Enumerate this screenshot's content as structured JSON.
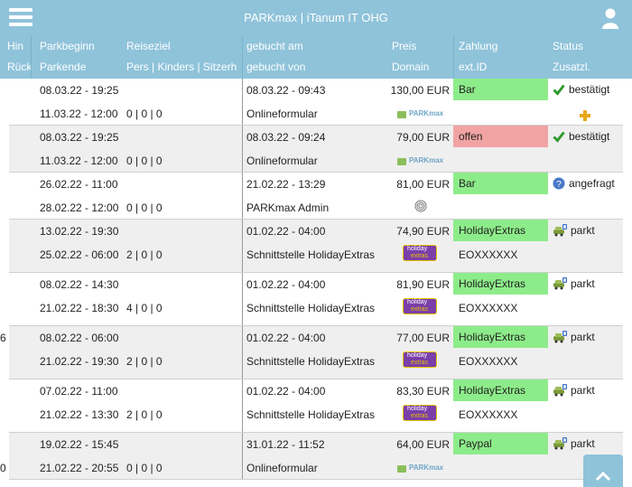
{
  "app": {
    "title": "PARKmax | iTanum IT OHG"
  },
  "header": {
    "hin": "Hin",
    "rueck": "Rück",
    "parkbeginn": "Parkbeginn",
    "parkende": "Parkende",
    "reiseziel": "Reiseziel",
    "pers": "Pers | Kinders | Sitzerh",
    "gebucht_am": "gebucht am",
    "gebucht_von": "gebucht von",
    "preis": "Preis",
    "domain": "Domain",
    "zahlung": "Zahlung",
    "ext_id": "ext.ID",
    "status": "Status",
    "zusatzl": "Zusatzl."
  },
  "rows": [
    {
      "left_top": "",
      "left_bottom": "",
      "beginn": "08.03.22 - 19:25",
      "ende": "11.03.22 - 12:00",
      "pers": "0 | 0 | 0",
      "gebucht_am": "08.03.22 - 09:43",
      "gebucht_von": "Onlineformular",
      "preis": "130,00 EUR",
      "domain_logo": "parkmax",
      "zahlung": "Bar",
      "zahlung_color": "green",
      "ext_id": "",
      "status": "bestätigt",
      "status_icon": "check-icon",
      "extra_icon": "plus-icon"
    },
    {
      "left_top": "",
      "left_bottom": "",
      "beginn": "08.03.22 - 19:25",
      "ende": "11.03.22 - 12:00",
      "pers": "0 | 0 | 0",
      "gebucht_am": "08.03.22 - 09:24",
      "gebucht_von": "Onlineformular",
      "preis": "79,00 EUR",
      "domain_logo": "parkmax",
      "zahlung": "offen",
      "zahlung_color": "red",
      "ext_id": "",
      "status": "bestätigt",
      "status_icon": "check-icon",
      "extra_icon": ""
    },
    {
      "left_top": "",
      "left_bottom": "",
      "beginn": "26.02.22 - 11:00",
      "ende": "28.02.22 - 12:00",
      "pers": "0 | 0 | 0",
      "gebucht_am": "21.02.22 - 13:29",
      "gebucht_von": "PARKmax Admin",
      "preis": "81,00 EUR",
      "domain_logo": "fingerprint",
      "zahlung": "Bar",
      "zahlung_color": "green",
      "ext_id": "",
      "status": "angefragt",
      "status_icon": "question-icon",
      "extra_icon": ""
    },
    {
      "left_top": "",
      "left_bottom": "",
      "beginn": "13.02.22 - 19:30",
      "ende": "25.02.22 - 06:00",
      "pers": "2 | 0 | 0",
      "gebucht_am": "01.02.22 - 04:00",
      "gebucht_von": "Schnittstelle HolidayExtras",
      "preis": "74,90 EUR",
      "domain_logo": "holiday",
      "zahlung": "HolidayExtras",
      "zahlung_color": "green",
      "ext_id": "EOXXXXXX",
      "status": "parkt",
      "status_icon": "car-icon",
      "extra_icon": ""
    },
    {
      "left_top": "",
      "left_bottom": "",
      "beginn": "08.02.22 - 14:30",
      "ende": "21.02.22 - 18:30",
      "pers": "4 | 0 | 0",
      "gebucht_am": "01.02.22 - 04:00",
      "gebucht_von": "Schnittstelle HolidayExtras",
      "preis": "81,90 EUR",
      "domain_logo": "holiday",
      "zahlung": "HolidayExtras",
      "zahlung_color": "green",
      "ext_id": "EOXXXXXX",
      "status": "parkt",
      "status_icon": "car-icon",
      "extra_icon": ""
    },
    {
      "left_top": "6",
      "left_bottom": "",
      "beginn": "08.02.22 - 06:00",
      "ende": "21.02.22 - 19:30",
      "pers": "2 | 0 | 0",
      "gebucht_am": "01.02.22 - 04:00",
      "gebucht_von": "Schnittstelle HolidayExtras",
      "preis": "77,00 EUR",
      "domain_logo": "holiday",
      "zahlung": "HolidayExtras",
      "zahlung_color": "green",
      "ext_id": "EOXXXXXX",
      "status": "parkt",
      "status_icon": "car-icon",
      "extra_icon": ""
    },
    {
      "left_top": "",
      "left_bottom": "",
      "beginn": "07.02.22 - 11:00",
      "ende": "21.02.22 - 13:30",
      "pers": "2 | 0 | 0",
      "gebucht_am": "01.02.22 - 04:00",
      "gebucht_von": "Schnittstelle HolidayExtras",
      "preis": "83,30 EUR",
      "domain_logo": "holiday",
      "zahlung": "HolidayExtras",
      "zahlung_color": "green",
      "ext_id": "EOXXXXXX",
      "status": "parkt",
      "status_icon": "car-icon",
      "extra_icon": ""
    },
    {
      "left_top": "",
      "left_bottom": "0",
      "beginn": "19.02.22 - 15:45",
      "ende": "21.02.22 - 20:55",
      "pers": "0 | 0 | 0",
      "gebucht_am": "31.01.22 - 11:52",
      "gebucht_von": "Onlineformular",
      "preis": "64,00 EUR",
      "domain_logo": "parkmax",
      "zahlung": "Paypal",
      "zahlung_color": "green",
      "ext_id": "",
      "status": "parkt",
      "status_icon": "car-icon",
      "extra_icon": ""
    }
  ],
  "logos": {
    "parkmax": "PARKmax",
    "holiday_top": "holiday",
    "holiday_bottom": "extras"
  },
  "colors": {
    "header_bg": "#8fc3da",
    "pay_green": "#8dec8a",
    "pay_red": "#f2a3a3",
    "row_alt": "#efefef"
  }
}
